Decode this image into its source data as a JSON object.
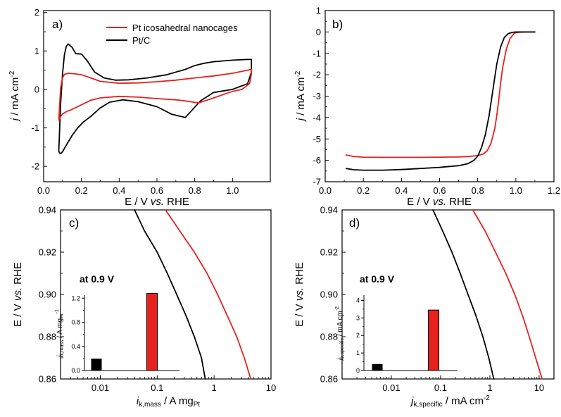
{
  "colors": {
    "pt_nanocages": "#e8211d",
    "pt_c": "#000000",
    "frame": "#000000"
  },
  "chart_data": [
    {
      "panel": "a",
      "type": "line",
      "letter": "a)",
      "xlabel": {
        "pre": "E / V ",
        "ital": "vs.",
        "post": " RHE"
      },
      "ylabel": {
        "ital": "j",
        "mid": " / mA cm",
        "sup": "-2"
      },
      "xlim": [
        0.0,
        1.2
      ],
      "ylim": [
        -2.4,
        2.05
      ],
      "xticks": [
        0.0,
        0.2,
        0.4,
        0.6,
        0.8,
        1.0
      ],
      "xtick_labels": [
        "0.0",
        "0.2",
        "0.4",
        "0.6",
        "0.8",
        "1.0"
      ],
      "yticks": [
        -2,
        -1,
        0,
        1,
        2
      ],
      "ytick_labels": [
        "-2",
        "-1",
        "0",
        "1",
        "2"
      ],
      "legend": [
        {
          "name": "Pt icosahedral nanocages",
          "color": "#e8211d"
        },
        {
          "name": "Pt/C",
          "color": "#000000"
        }
      ],
      "series": [
        {
          "name": "Pt/C",
          "color": "#000000",
          "x": [
            0.08,
            0.09,
            0.1,
            0.11,
            0.12,
            0.13,
            0.15,
            0.17,
            0.2,
            0.23,
            0.27,
            0.32,
            0.38,
            0.45,
            0.55,
            0.65,
            0.75,
            0.8,
            0.85,
            0.9,
            1.0,
            1.08,
            1.1,
            1.1,
            1.08,
            1.0,
            0.9,
            0.83,
            0.75,
            0.68,
            0.6,
            0.5,
            0.42,
            0.35,
            0.3,
            0.25,
            0.21,
            0.18,
            0.15,
            0.12,
            0.1,
            0.09,
            0.085,
            0.08
          ],
          "y": [
            -1.6,
            -0.35,
            0.4,
            0.9,
            1.12,
            1.18,
            1.1,
            0.93,
            0.92,
            0.75,
            0.45,
            0.3,
            0.24,
            0.25,
            0.3,
            0.38,
            0.52,
            0.62,
            0.68,
            0.72,
            0.76,
            0.78,
            0.78,
            0.45,
            0.15,
            0.0,
            -0.08,
            -0.3,
            -0.73,
            -0.65,
            -0.45,
            -0.32,
            -0.27,
            -0.33,
            -0.48,
            -0.7,
            -0.85,
            -1.0,
            -1.2,
            -1.45,
            -1.62,
            -1.67,
            -1.66,
            -1.6
          ]
        },
        {
          "name": "Pt icosahedral nanocages",
          "color": "#e8211d",
          "x": [
            0.08,
            0.09,
            0.1,
            0.11,
            0.13,
            0.16,
            0.2,
            0.25,
            0.3,
            0.4,
            0.5,
            0.6,
            0.7,
            0.8,
            0.9,
            1.0,
            1.08,
            1.1,
            1.1,
            1.09,
            1.05,
            1.0,
            0.9,
            0.82,
            0.75,
            0.7,
            0.6,
            0.5,
            0.4,
            0.3,
            0.25,
            0.2,
            0.15,
            0.12,
            0.1,
            0.09,
            0.085,
            0.08
          ],
          "y": [
            -0.8,
            0.05,
            0.3,
            0.39,
            0.42,
            0.41,
            0.38,
            0.3,
            0.21,
            0.16,
            0.17,
            0.2,
            0.24,
            0.3,
            0.35,
            0.42,
            0.5,
            0.52,
            0.4,
            0.15,
            0.0,
            -0.05,
            -0.22,
            -0.35,
            -0.3,
            -0.27,
            -0.24,
            -0.2,
            -0.18,
            -0.22,
            -0.28,
            -0.4,
            -0.52,
            -0.58,
            -0.64,
            -0.7,
            -0.76,
            -0.8
          ]
        }
      ]
    },
    {
      "panel": "b",
      "type": "line",
      "letter": "b)",
      "xlabel": {
        "pre": "E / V ",
        "ital": "vs.",
        "post": " RHE"
      },
      "ylabel": {
        "ital": "j",
        "mid": " / mA cm",
        "sup": "-2"
      },
      "xlim": [
        0.0,
        1.2
      ],
      "ylim": [
        -7.0,
        1.0
      ],
      "xticks": [
        0.0,
        0.2,
        0.4,
        0.6,
        0.8,
        1.0,
        1.2
      ],
      "xtick_labels": [
        "0.0",
        "0.2",
        "0.4",
        "0.6",
        "0.8",
        "1.0",
        "1.2"
      ],
      "yticks": [
        -7,
        -6,
        -5,
        -4,
        -3,
        -2,
        -1,
        0,
        1
      ],
      "ytick_labels": [
        "-7",
        "-6",
        "-5",
        "-4",
        "-3",
        "-2",
        "-1",
        "0",
        "1"
      ],
      "series": [
        {
          "name": "Pt icosahedral nanocages",
          "color": "#e8211d",
          "x": [
            0.11,
            0.15,
            0.2,
            0.3,
            0.4,
            0.5,
            0.6,
            0.7,
            0.75,
            0.8,
            0.83,
            0.85,
            0.87,
            0.89,
            0.9,
            0.91,
            0.92,
            0.93,
            0.95,
            0.97,
            0.99,
            1.0,
            1.02,
            1.05,
            1.1
          ],
          "y": [
            -5.75,
            -5.82,
            -5.85,
            -5.86,
            -5.86,
            -5.86,
            -5.85,
            -5.84,
            -5.82,
            -5.78,
            -5.7,
            -5.55,
            -5.2,
            -4.5,
            -3.9,
            -3.2,
            -2.4,
            -1.7,
            -0.8,
            -0.3,
            -0.08,
            -0.03,
            -0.01,
            0.0,
            0.0
          ]
        },
        {
          "name": "Pt/C",
          "color": "#000000",
          "x": [
            0.11,
            0.15,
            0.2,
            0.3,
            0.4,
            0.5,
            0.6,
            0.7,
            0.75,
            0.78,
            0.8,
            0.82,
            0.84,
            0.86,
            0.87,
            0.88,
            0.89,
            0.9,
            0.92,
            0.94,
            0.96,
            0.98,
            1.0,
            1.05,
            1.1
          ],
          "y": [
            -6.38,
            -6.44,
            -6.46,
            -6.46,
            -6.43,
            -6.38,
            -6.33,
            -6.25,
            -6.15,
            -6.0,
            -5.8,
            -5.4,
            -4.8,
            -3.9,
            -3.3,
            -2.7,
            -2.1,
            -1.5,
            -0.7,
            -0.25,
            -0.08,
            -0.02,
            0.0,
            0.0,
            0.0
          ]
        }
      ]
    },
    {
      "panel": "c",
      "type": "line",
      "letter": "c)",
      "xscale": "log",
      "xlabel": {
        "ital": "i",
        "sub": "k,mass",
        "mid": " / A mg",
        "sub2": "Pt",
        "sup": ""
      },
      "ylabel": {
        "pre": "E / V ",
        "ital": "vs.",
        "post": " RHE"
      },
      "xlim": [
        0.002,
        10
      ],
      "ylim": [
        0.86,
        0.94
      ],
      "xticks": [
        0.01,
        0.1,
        1,
        10
      ],
      "xtick_labels": [
        "0.01",
        "0.1",
        "1",
        "10"
      ],
      "yticks": [
        0.86,
        0.88,
        0.9,
        0.92,
        0.94
      ],
      "ytick_labels": [
        "0.86",
        "0.88",
        "0.90",
        "0.92",
        "0.94"
      ],
      "series": [
        {
          "name": "Pt/C",
          "color": "#000000",
          "x": [
            0.04,
            0.06,
            0.1,
            0.15,
            0.22,
            0.32,
            0.45,
            0.6,
            0.7
          ],
          "y": [
            0.94,
            0.93,
            0.92,
            0.91,
            0.9,
            0.89,
            0.88,
            0.87,
            0.86
          ]
        },
        {
          "name": "Pt icosahedral nanocages",
          "color": "#e8211d",
          "x": [
            0.14,
            0.25,
            0.45,
            0.75,
            1.15,
            1.7,
            2.5,
            3.4,
            4.4
          ],
          "y": [
            0.94,
            0.93,
            0.92,
            0.91,
            0.9,
            0.89,
            0.88,
            0.87,
            0.86
          ]
        }
      ],
      "inset": {
        "type": "bar",
        "title": "at 0.9 V",
        "ylabel": {
          "ital": "j",
          "sub": "k,mass",
          "mid": " / A mg",
          "sub2": "Pt",
          "sup": "-1"
        },
        "ylim": [
          0,
          1.25
        ],
        "yticks": [
          0.0,
          0.4,
          0.8,
          1.2
        ],
        "ytick_labels": [
          "0.0",
          "0.4",
          "0.8",
          "1.2"
        ],
        "categories": [
          "Pt/C",
          "Pt icosahedral nanocages"
        ],
        "values": [
          0.19,
          1.28
        ],
        "colors": [
          "#000000",
          "#e8211d"
        ]
      }
    },
    {
      "panel": "d",
      "type": "line",
      "letter": "d)",
      "xscale": "log",
      "xlabel": {
        "ital": "j",
        "sub": "k,specific",
        "mid": " / mA cm",
        "sup": "-2"
      },
      "ylabel": {
        "pre": "E / V ",
        "ital": "vs.",
        "post": " RHE"
      },
      "xlim": [
        0.001,
        20
      ],
      "ylim": [
        0.86,
        0.94
      ],
      "xticks": [
        0.01,
        0.1,
        1,
        10
      ],
      "xtick_labels": [
        "0.01",
        "0.1",
        "1",
        "10"
      ],
      "yticks": [
        0.86,
        0.88,
        0.9,
        0.92,
        0.94
      ],
      "ytick_labels": [
        "0.86",
        "0.88",
        "0.90",
        "0.92",
        "0.94"
      ],
      "series": [
        {
          "name": "Pt/C",
          "color": "#000000",
          "x": [
            0.07,
            0.11,
            0.17,
            0.25,
            0.36,
            0.52,
            0.72,
            0.95,
            1.2
          ],
          "y": [
            0.94,
            0.93,
            0.92,
            0.91,
            0.9,
            0.89,
            0.88,
            0.87,
            0.86
          ]
        },
        {
          "name": "Pt icosahedral nanocages",
          "color": "#e8211d",
          "x": [
            0.45,
            0.8,
            1.3,
            2.1,
            3.2,
            4.6,
            6.3,
            8.5,
            11.5
          ],
          "y": [
            0.94,
            0.93,
            0.92,
            0.91,
            0.9,
            0.89,
            0.88,
            0.87,
            0.86
          ]
        }
      ],
      "inset": {
        "type": "bar",
        "title": "at 0.9 V",
        "ylabel": {
          "ital": "j",
          "sub": "k,specific",
          "mid": " / mA cm",
          "sup": "-2"
        },
        "ylim": [
          0,
          4.3
        ],
        "yticks": [
          0,
          1,
          2,
          3,
          4
        ],
        "ytick_labels": [
          "0",
          "1",
          "2",
          "3",
          "4"
        ],
        "categories": [
          "Pt/C",
          "Pt icosahedral nanocages"
        ],
        "values": [
          0.35,
          3.45
        ],
        "colors": [
          "#000000",
          "#e8211d"
        ]
      }
    }
  ]
}
